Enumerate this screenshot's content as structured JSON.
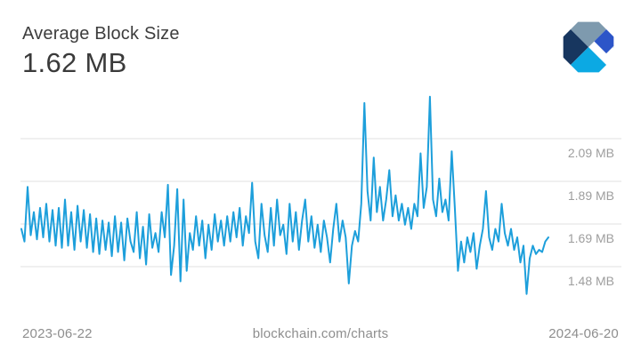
{
  "header": {
    "title": "Average Block Size",
    "value": "1.62 MB"
  },
  "footer": {
    "start_date": "2023-06-22",
    "source": "blockchain.com/charts",
    "end_date": "2024-06-20"
  },
  "logo": {
    "name": "blockchain-logo",
    "colors": {
      "slate": "#7E9AAE",
      "navy": "#17365F",
      "cyan": "#0CA9E3",
      "royal": "#2C55C8",
      "light": "#B7CDDB"
    }
  },
  "chart_data": {
    "type": "line",
    "title": "Average Block Size",
    "unit": "MB",
    "x_range": [
      "2023-06-22",
      "2024-06-20"
    ],
    "ylim": [
      1.3,
      2.35
    ],
    "grid": true,
    "legend": "none",
    "colors": {
      "line": "#1D9FDB",
      "grid": "#E1E1E1",
      "label": "#9E9E9E"
    },
    "gridlines": [
      {
        "label": "2.09 MB",
        "value": 2.09
      },
      {
        "label": "1.89 MB",
        "value": 1.89
      },
      {
        "label": "1.69 MB",
        "value": 1.69
      },
      {
        "label": "1.48 MB",
        "value": 1.48
      }
    ],
    "latest_value": 1.62,
    "values": [
      1.66,
      1.6,
      1.86,
      1.63,
      1.74,
      1.61,
      1.76,
      1.62,
      1.78,
      1.6,
      1.75,
      1.58,
      1.76,
      1.57,
      1.8,
      1.58,
      1.74,
      1.56,
      1.77,
      1.6,
      1.75,
      1.57,
      1.73,
      1.55,
      1.71,
      1.54,
      1.7,
      1.56,
      1.69,
      1.53,
      1.72,
      1.55,
      1.69,
      1.51,
      1.71,
      1.6,
      1.55,
      1.74,
      1.52,
      1.67,
      1.49,
      1.73,
      1.57,
      1.64,
      1.55,
      1.74,
      1.62,
      1.87,
      1.44,
      1.58,
      1.85,
      1.41,
      1.8,
      1.46,
      1.64,
      1.56,
      1.72,
      1.58,
      1.7,
      1.52,
      1.68,
      1.56,
      1.73,
      1.6,
      1.7,
      1.58,
      1.72,
      1.6,
      1.74,
      1.62,
      1.76,
      1.58,
      1.72,
      1.64,
      1.88,
      1.6,
      1.52,
      1.78,
      1.63,
      1.55,
      1.76,
      1.58,
      1.8,
      1.63,
      1.68,
      1.54,
      1.78,
      1.6,
      1.74,
      1.56,
      1.7,
      1.8,
      1.6,
      1.72,
      1.57,
      1.68,
      1.55,
      1.7,
      1.62,
      1.5,
      1.66,
      1.78,
      1.6,
      1.7,
      1.62,
      1.4,
      1.58,
      1.65,
      1.6,
      1.78,
      2.26,
      1.84,
      1.7,
      2.0,
      1.74,
      1.86,
      1.7,
      1.8,
      1.94,
      1.72,
      1.82,
      1.7,
      1.78,
      1.68,
      1.76,
      1.66,
      1.78,
      1.72,
      2.02,
      1.76,
      1.86,
      2.29,
      1.8,
      1.72,
      1.9,
      1.74,
      1.8,
      1.7,
      2.03,
      1.76,
      1.46,
      1.6,
      1.5,
      1.62,
      1.55,
      1.64,
      1.47,
      1.58,
      1.66,
      1.84,
      1.62,
      1.56,
      1.66,
      1.6,
      1.78,
      1.64,
      1.58,
      1.66,
      1.56,
      1.62,
      1.5,
      1.58,
      1.35,
      1.52,
      1.58,
      1.54,
      1.56,
      1.55,
      1.6,
      1.62
    ]
  }
}
